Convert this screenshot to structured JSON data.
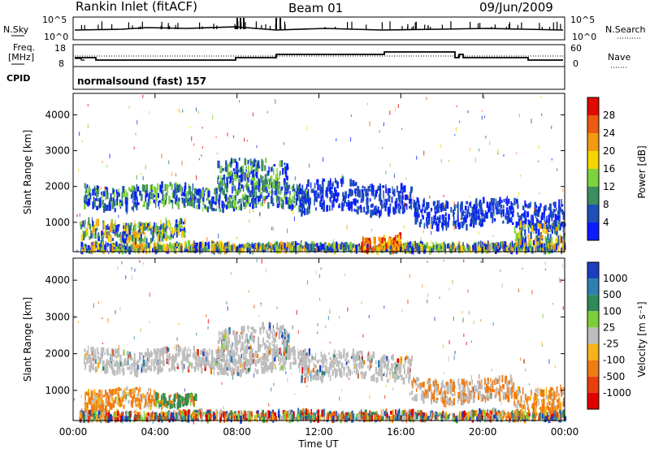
{
  "header": {
    "station": "Rankin Inlet (fitACF)",
    "beam": "Beam 01",
    "date": "09/Jun/2009"
  },
  "top_panels": {
    "nsky_label": "N.Sky",
    "nsky_ticks": [
      "10^5",
      "10^0"
    ],
    "nsearch_label": "N.Search",
    "nsearch_ticks": [
      "10^5",
      "10^0"
    ],
    "freq_label_1": "Freq.",
    "freq_label_2": "[MHz]",
    "freq_ticks": [
      "18",
      "8"
    ],
    "nave_label": "Nave",
    "nave_ticks": [
      "60",
      "0"
    ],
    "cpid_label": "CPID",
    "cpid_text": "normalsound (fast) 157"
  },
  "chart_data": [
    {
      "type": "heatmap",
      "panel": "power",
      "ylabel": "Slant Range [km]",
      "ylim": [
        180,
        4600
      ],
      "yticks": [
        "1000",
        "2000",
        "3000",
        "4000"
      ],
      "colorbar": {
        "label": "Power [dB]",
        "levels": [
          "4",
          "8",
          "12",
          "16",
          "20",
          "24",
          "28"
        ],
        "colors": [
          "#0a1dff",
          "#1f4fb8",
          "#3b8e5e",
          "#7ed23b",
          "#f5d400",
          "#f29a14",
          "#ee5a0f",
          "#e00a00"
        ]
      },
      "features": [
        {
          "t0": 0.3,
          "t1": 24.0,
          "r0": 180,
          "r1": 380,
          "level": "strong",
          "note": "near-range echoes"
        },
        {
          "t0": 0.3,
          "t1": 5.5,
          "r0": 500,
          "r1": 1000,
          "level": "strong"
        },
        {
          "t0": 0.5,
          "t1": 11.5,
          "r0": 1400,
          "r1": 2000,
          "level": "medium"
        },
        {
          "t0": 7.0,
          "t1": 10.5,
          "r0": 2000,
          "r1": 2700,
          "level": "medium"
        },
        {
          "t0": 11.0,
          "t1": 16.5,
          "r0": 1300,
          "r1": 2100,
          "level": "weak"
        },
        {
          "t0": 14.0,
          "t1": 16.0,
          "r0": 200,
          "r1": 600,
          "level": "very-strong"
        },
        {
          "t0": 16.5,
          "t1": 24.0,
          "r0": 900,
          "r1": 1600,
          "level": "weak"
        },
        {
          "t0": 21.5,
          "t1": 24.0,
          "r0": 400,
          "r1": 1000,
          "level": "strong"
        }
      ]
    },
    {
      "type": "heatmap",
      "panel": "velocity",
      "xlabel": "Time UT",
      "ylabel": "Slant Range [km]",
      "ylim": [
        180,
        4600
      ],
      "yticks": [
        "1000",
        "2000",
        "3000",
        "4000"
      ],
      "xticks": [
        "00:00",
        "04:00",
        "08:00",
        "12:00",
        "16:00",
        "20:00",
        "00:00"
      ],
      "colorbar": {
        "label": "Velocity [m s⁻¹]",
        "levels": [
          "1000",
          "500",
          "100",
          "25",
          "-25",
          "-100",
          "-500",
          "-1000"
        ],
        "colors": [
          "#1b3fbf",
          "#2f7fb0",
          "#2e8b57",
          "#7ccf3a",
          "#bdbdbd",
          "#f6b21a",
          "#f07b12",
          "#e8400c",
          "#e00000"
        ]
      },
      "features": [
        {
          "t0": 0.3,
          "t1": 24.0,
          "r0": 180,
          "r1": 400,
          "kind": "mixed-green"
        },
        {
          "t0": 0.5,
          "t1": 11.5,
          "r0": 1500,
          "r1": 2100,
          "kind": "grey"
        },
        {
          "t0": 7.0,
          "t1": 10.5,
          "r0": 2000,
          "r1": 2700,
          "kind": "grey"
        },
        {
          "t0": 11.0,
          "t1": 16.5,
          "r0": 1300,
          "r1": 2000,
          "kind": "grey"
        },
        {
          "t0": 0.5,
          "t1": 4.0,
          "r0": 500,
          "r1": 1000,
          "kind": "orange"
        },
        {
          "t0": 4.0,
          "t1": 6.0,
          "r0": 600,
          "r1": 900,
          "kind": "green"
        },
        {
          "t0": 16.5,
          "t1": 21.5,
          "r0": 700,
          "r1": 1300,
          "kind": "orange-grey"
        },
        {
          "t0": 21.5,
          "t1": 24.0,
          "r0": 400,
          "r1": 1100,
          "kind": "orange"
        }
      ]
    }
  ]
}
